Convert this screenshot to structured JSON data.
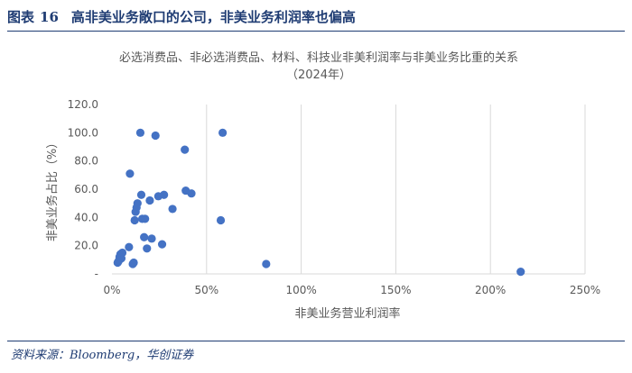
{
  "header": {
    "label": "图表",
    "number": "16",
    "text": "高非美业务敞口的公司，非美业务利润率也偏高"
  },
  "source": "资料来源：Bloomberg，华创证券",
  "chart_data": {
    "type": "scatter",
    "title": "必选消费品、非必选消费品、材料、科技业非美利润率与非美业务比重的关系",
    "subtitle": "（2024年）",
    "xlabel": "非美业务营业利润率",
    "ylabel": "非美业务占比（%）",
    "xlim": [
      0,
      250
    ],
    "ylim": [
      0,
      120
    ],
    "x_ticks": [
      "0%",
      "50%",
      "100%",
      "150%",
      "200%",
      "250%"
    ],
    "y_ticks": [
      "-",
      "20.0",
      "40.0",
      "60.0",
      "80.0",
      "100.0",
      "120.0"
    ],
    "grid": "vertical",
    "color": "#4472c4",
    "points": [
      {
        "x": 3,
        "y": 8
      },
      {
        "x": 3.5,
        "y": 9
      },
      {
        "x": 4,
        "y": 12
      },
      {
        "x": 4.5,
        "y": 14
      },
      {
        "x": 5,
        "y": 11
      },
      {
        "x": 5.5,
        "y": 15
      },
      {
        "x": 9,
        "y": 19
      },
      {
        "x": 9.5,
        "y": 71
      },
      {
        "x": 11,
        "y": 7
      },
      {
        "x": 11.5,
        "y": 8
      },
      {
        "x": 12,
        "y": 38
      },
      {
        "x": 12.5,
        "y": 44
      },
      {
        "x": 13,
        "y": 47
      },
      {
        "x": 13.5,
        "y": 50
      },
      {
        "x": 15,
        "y": 100
      },
      {
        "x": 15.5,
        "y": 56
      },
      {
        "x": 16,
        "y": 39
      },
      {
        "x": 17,
        "y": 26
      },
      {
        "x": 17.5,
        "y": 39
      },
      {
        "x": 18.5,
        "y": 18
      },
      {
        "x": 20,
        "y": 52
      },
      {
        "x": 21,
        "y": 25
      },
      {
        "x": 23,
        "y": 98
      },
      {
        "x": 24.5,
        "y": 55
      },
      {
        "x": 26.5,
        "y": 21
      },
      {
        "x": 27.5,
        "y": 56
      },
      {
        "x": 32,
        "y": 46
      },
      {
        "x": 38.5,
        "y": 88
      },
      {
        "x": 39,
        "y": 59
      },
      {
        "x": 42,
        "y": 57
      },
      {
        "x": 57.5,
        "y": 38
      },
      {
        "x": 58.5,
        "y": 100
      },
      {
        "x": 81.5,
        "y": 7
      },
      {
        "x": 216,
        "y": 1.5
      }
    ]
  }
}
